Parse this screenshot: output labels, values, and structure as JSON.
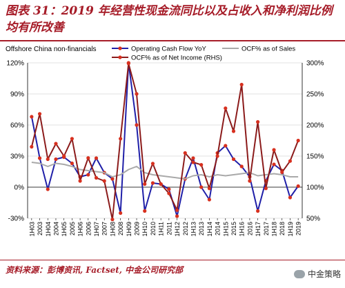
{
  "header": {
    "title": "图表 31：2019 年经营性现金流同比以及占收入和净利润比例均有所改善"
  },
  "footer": {
    "source": "资料来源：彭博资讯, Factset, 中金公司研究部",
    "watermark": "中金策略"
  },
  "chart_data": {
    "type": "line",
    "title": "",
    "subtitle": "Offshore China non-financials",
    "categories": [
      "1H03",
      "2003",
      "1H04",
      "2004",
      "1H05",
      "2005",
      "1H06",
      "2006",
      "1H07",
      "2007",
      "1H08",
      "2008",
      "1H09",
      "2009",
      "1H10",
      "2010",
      "1H11",
      "2011",
      "1H12",
      "2012",
      "1H13",
      "2013",
      "1H14",
      "2014",
      "1H15",
      "2015",
      "1H16",
      "2016",
      "1H17",
      "2017",
      "1H18",
      "2018",
      "1H19",
      "2019"
    ],
    "y_left": {
      "range": [
        -30,
        120
      ],
      "ticks": [
        120,
        90,
        60,
        30,
        0,
        -30
      ],
      "format": "%"
    },
    "y_right": {
      "range": [
        50,
        300
      ],
      "ticks": [
        300,
        250,
        200,
        150,
        100,
        50
      ],
      "format": "%"
    },
    "series": [
      {
        "name": "Operating Cash Flow YoY",
        "axis": "left",
        "color": "#1f1fa8",
        "marker": "circle",
        "values": [
          68,
          28,
          -2,
          27,
          29,
          23,
          10,
          12,
          28,
          14,
          8,
          -25,
          120,
          60,
          -23,
          4,
          3,
          -2,
          -28,
          8,
          28,
          0,
          -12,
          33,
          40,
          27,
          20,
          10,
          -23,
          6,
          22,
          16,
          -10,
          1
        ]
      },
      {
        "name": "OCF% as of Sales",
        "axis": "left",
        "color": "#a9a9a9",
        "marker": "none",
        "values": [
          24,
          23,
          20,
          23,
          22,
          20,
          17,
          16,
          15,
          14,
          10,
          12,
          17,
          20,
          14,
          12,
          11,
          10,
          9,
          8,
          11,
          12,
          10,
          12,
          11,
          12,
          13,
          14,
          11,
          12,
          13,
          12,
          10,
          10
        ]
      },
      {
        "name": "OCF% as of Net Income (RHS)",
        "axis": "right",
        "color": "#8b1a1a",
        "marker": "circle",
        "values": [
          165,
          218,
          145,
          170,
          150,
          178,
          110,
          147,
          115,
          110,
          48,
          178,
          299,
          250,
          105,
          138,
          105,
          90,
          63,
          155,
          140,
          136,
          98,
          150,
          227,
          190,
          265,
          110,
          205,
          98,
          160,
          124,
          142,
          175
        ]
      }
    ],
    "grid": "horizontal",
    "legend": "top"
  }
}
